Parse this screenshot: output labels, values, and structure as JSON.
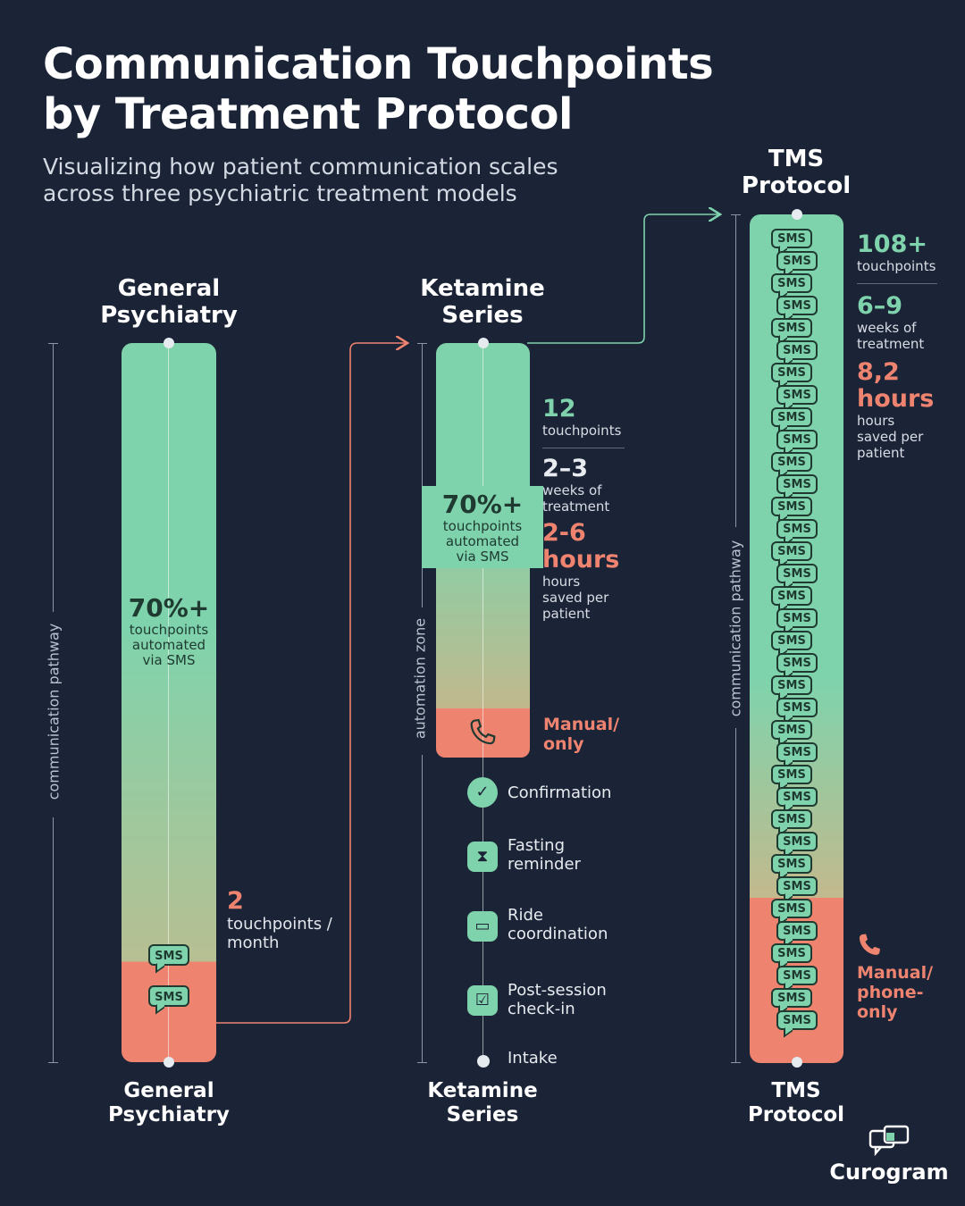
{
  "header": {
    "title_line1": "Communication Touchpoints",
    "title_line2": "by Treatment Protocol",
    "subtitle_line1": "Visualizing how patient communication scales",
    "subtitle_line2": "across three psychiatric treatment models"
  },
  "labels": {
    "communication_pathway": "communication pathway",
    "automation_zone": "automation zone",
    "sms": "SMS"
  },
  "general": {
    "title_line1": "General",
    "title_line2": "Psychiatry",
    "pct": "70%+",
    "pct_lbl1": "touchpoints",
    "pct_lbl2": "automated",
    "pct_lbl3": "via SMS",
    "count": "2",
    "count_lbl1": "touchpoints /",
    "count_lbl2": "month"
  },
  "ketamine": {
    "title_line1": "Ketamine",
    "title_line2": "Series",
    "pct": "70%+",
    "pct_lbl1": "touchpoints",
    "pct_lbl2": "automated",
    "pct_lbl3": "via SMS",
    "touch_num": "12",
    "touch_lbl": "touchpoints",
    "weeks_num": "2–3",
    "weeks_lbl1": "weeks of",
    "weeks_lbl2": "treatment",
    "hours_num": "2-6",
    "hours_word": "hours",
    "hours_lbl1": "hours",
    "hours_lbl2": "saved per",
    "hours_lbl3": "patient",
    "manual_line1": "Manual/",
    "manual_line2": "only",
    "steps": [
      "Confirmation",
      "Fasting reminder",
      "Ride coordination",
      "Post-session check-in",
      "Intake"
    ],
    "step_lines": [
      [
        "Confirmation"
      ],
      [
        "Fasting",
        "reminder"
      ],
      [
        "Ride",
        "coordination"
      ],
      [
        "Post-session",
        "check-in"
      ],
      [
        "Intake"
      ]
    ]
  },
  "tms": {
    "title_line1": "TMS",
    "title_line2": "Protocol",
    "touch_num": "108+",
    "touch_lbl": "touchpoints",
    "weeks_num": "6–9",
    "weeks_lbl1": "weeks of",
    "weeks_lbl2": "treatment",
    "hours_num": "8,2",
    "hours_word": "hours",
    "hours_lbl1": "hours",
    "hours_lbl2": "saved per",
    "hours_lbl3": "patient",
    "manual_line1": "Manual/",
    "manual_line2": "phone-",
    "manual_line3": "only"
  },
  "brand": {
    "name": "Curogram"
  },
  "colors": {
    "background": "#1b2336",
    "green": "#7fd3ac",
    "salmon": "#ee8470"
  }
}
